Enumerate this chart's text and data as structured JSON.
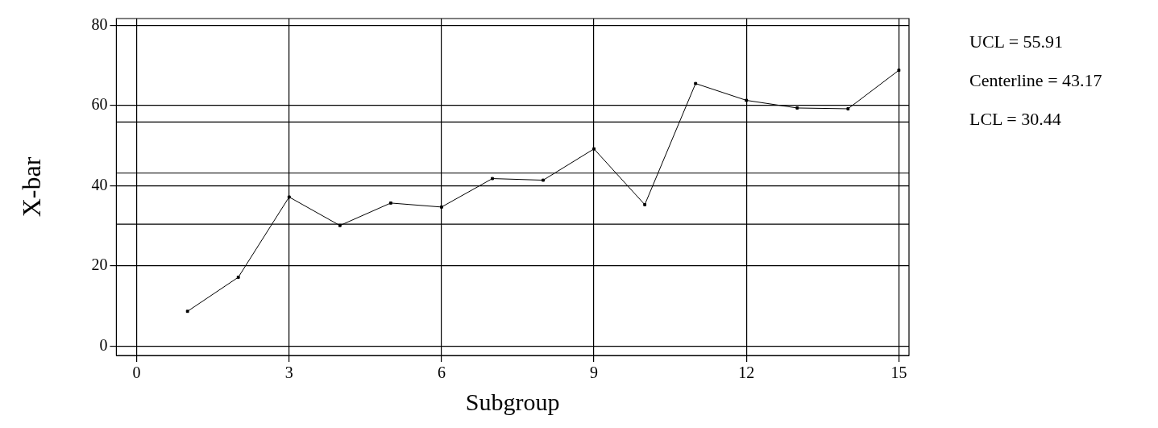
{
  "chart_data": {
    "type": "line",
    "xlabel": "Subgroup",
    "ylabel": "X-bar",
    "x": [
      1,
      2,
      3,
      4,
      5,
      6,
      7,
      8,
      9,
      10,
      11,
      12,
      13,
      14,
      15
    ],
    "series": [
      {
        "color": "#000000",
        "values": [
          8.7,
          17.2,
          37.2,
          30.1,
          35.7,
          34.7,
          41.8,
          41.4,
          49.2,
          35.3,
          65.5,
          61.3,
          59.4,
          59.2,
          68.8
        ]
      }
    ],
    "xlim": [
      -0.4,
      15.2
    ],
    "xticks": [
      0,
      3,
      6,
      9,
      12,
      15
    ],
    "ylim": [
      -2.3,
      81.7
    ],
    "yticks": [
      0,
      20,
      40,
      60,
      80
    ],
    "grid": true,
    "marker": "square",
    "line_style": "solid",
    "legend": false,
    "ref_lines": [
      {
        "axis": "y",
        "value": 55.91,
        "color": "#000000"
      },
      {
        "axis": "y",
        "value": 43.17,
        "color": "#000000"
      },
      {
        "axis": "y",
        "value": 30.44,
        "color": "#000000"
      }
    ],
    "annotations": [
      "UCL = 55.91",
      "Centerline = 43.17",
      "LCL = 30.44"
    ]
  }
}
